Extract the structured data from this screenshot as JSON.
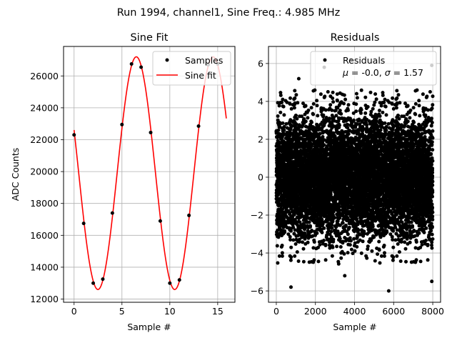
{
  "chart_data": [
    {
      "type": "line",
      "title": "Sine Fit",
      "xlabel": "Sample #",
      "ylabel": "ADC Counts",
      "xlim": [
        -1.1,
        16.8
      ],
      "ylim": [
        11800,
        27850
      ],
      "xticks": [
        0,
        5,
        10,
        15
      ],
      "yticks": [
        12000,
        14000,
        16000,
        18000,
        20000,
        22000,
        24000,
        26000
      ],
      "grid": true,
      "legend": "top-right",
      "series": [
        {
          "name": "Samples",
          "kind": "scatter",
          "color": "#000000",
          "x": [
            0,
            1,
            2,
            3,
            4,
            5,
            6,
            7,
            8,
            9,
            10,
            11,
            12,
            13,
            14,
            15
          ],
          "y": [
            22300,
            16750,
            13000,
            13250,
            17400,
            22950,
            26750,
            26550,
            22450,
            16900,
            13000,
            13200,
            17250,
            22850,
            26700,
            26750
          ]
        },
        {
          "name": "Sine fit",
          "kind": "line",
          "color": "#ff0000",
          "function": "sine",
          "offset": 19900,
          "amplitude": 7300,
          "period_samples": 8.02,
          "phase_center_sample": 6.5,
          "x_range": [
            0,
            15.9
          ]
        }
      ]
    },
    {
      "type": "scatter",
      "title": "Residuals",
      "xlabel": "Sample #",
      "ylabel": "",
      "xlim": [
        -400,
        8400
      ],
      "ylim": [
        -6.6,
        6.9
      ],
      "xticks": [
        0,
        2000,
        4000,
        6000,
        8000
      ],
      "yticks": [
        -6,
        -4,
        -2,
        0,
        2,
        4,
        6
      ],
      "grid": true,
      "legend": "top-right",
      "series": [
        {
          "name": "Residuals",
          "color": "#000000",
          "n_points": 8000,
          "x_range": [
            0,
            7999
          ],
          "mean": -0.0,
          "std": 1.57,
          "outliers": [
            {
              "x": 2450,
              "y": 5.8
            },
            {
              "x": 3800,
              "y": 6.2
            },
            {
              "x": 7950,
              "y": 5.9
            },
            {
              "x": 1150,
              "y": 5.2
            },
            {
              "x": 750,
              "y": -5.8
            },
            {
              "x": 5750,
              "y": -6.0
            },
            {
              "x": 7950,
              "y": -5.5
            },
            {
              "x": 3500,
              "y": -5.2
            }
          ]
        }
      ],
      "legend_stats": "$\\mu$ = -0.0, $\\sigma$ = 1.57"
    }
  ],
  "figure": {
    "suptitle": "Run 1994, channel1, Sine Freq.: 4.985 MHz"
  },
  "legend_labels": {
    "samples": "Samples",
    "sine_fit": "Sine fit",
    "residuals": "Residuals",
    "residual_stats_mu": "μ",
    "residual_stats_rest1": " = -0.0, ",
    "residual_stats_sigma": "σ",
    "residual_stats_rest2": " = 1.57"
  }
}
